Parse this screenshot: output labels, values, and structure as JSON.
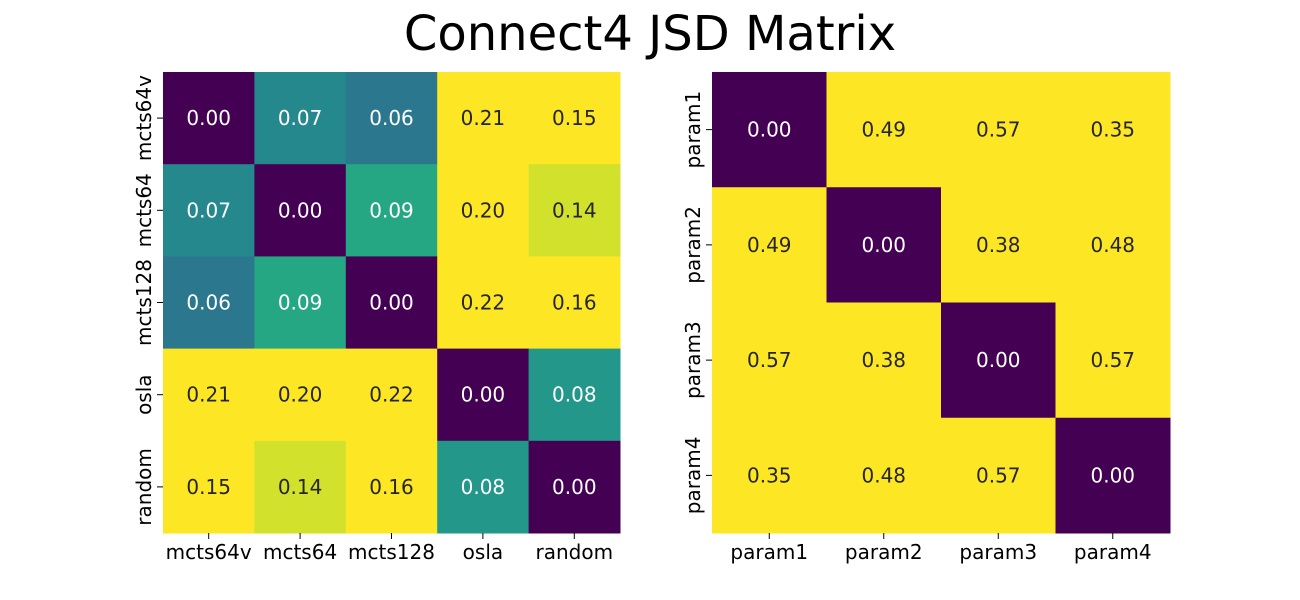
{
  "title": "Connect4 JSD Matrix",
  "colors": {
    "low": "#440154",
    "high": "#fde725",
    "text_on_dark": "#ffffff",
    "text_on_light": "#262626"
  },
  "chart_data": [
    {
      "type": "heatmap",
      "labels": [
        "mcts64v",
        "mcts64",
        "mcts128",
        "osla",
        "random"
      ],
      "values": [
        [
          0.0,
          0.07,
          0.06,
          0.21,
          0.15
        ],
        [
          0.07,
          0.0,
          0.09,
          0.2,
          0.14
        ],
        [
          0.06,
          0.09,
          0.0,
          0.22,
          0.16
        ],
        [
          0.21,
          0.2,
          0.22,
          0.0,
          0.08
        ],
        [
          0.15,
          0.14,
          0.16,
          0.08,
          0.0
        ]
      ],
      "colormap": "viridis",
      "color_range": [
        0.0,
        0.15
      ],
      "annotate": true,
      "fmt": ".2f",
      "colorbar": false
    },
    {
      "type": "heatmap",
      "labels": [
        "param1",
        "param2",
        "param3",
        "param4"
      ],
      "values": [
        [
          0.0,
          0.49,
          0.57,
          0.35
        ],
        [
          0.49,
          0.0,
          0.38,
          0.48
        ],
        [
          0.57,
          0.38,
          0.0,
          0.57
        ],
        [
          0.35,
          0.48,
          0.57,
          0.0
        ]
      ],
      "colormap": "viridis",
      "color_range": [
        0.0,
        0.15
      ],
      "annotate": true,
      "fmt": ".2f",
      "colorbar": false
    }
  ]
}
